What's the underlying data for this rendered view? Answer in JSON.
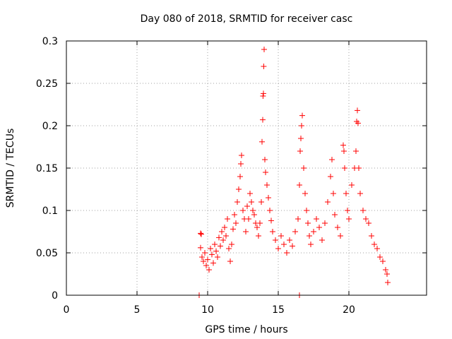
{
  "chart_data": {
    "type": "scatter",
    "title": "Day 080 of 2018, SRMTID for receiver casc",
    "xlabel": "GPS time / hours",
    "ylabel": "SRMTID / TECUs",
    "xlim": [
      0,
      25.5
    ],
    "ylim": [
      0,
      0.3
    ],
    "grid": true,
    "marker": "+",
    "marker_color": "#ff0000",
    "x_ticks": [
      0,
      5,
      10,
      15,
      20
    ],
    "x_tick_labels": [
      "0",
      "5",
      "10",
      "15",
      "20"
    ],
    "y_ticks": [
      0,
      0.05,
      0.1,
      0.15,
      0.2,
      0.25,
      0.3
    ],
    "y_tick_labels": [
      "0",
      "0.05",
      "0.1",
      "0.15",
      "0.2",
      "0.25",
      "0.3"
    ],
    "series": [
      {
        "name": "SRMTID",
        "color": "#ff0000",
        "points": [
          [
            9.4,
            0.0
          ],
          [
            16.5,
            0.0
          ],
          [
            9.5,
            0.073
          ],
          [
            9.55,
            0.072
          ],
          [
            9.5,
            0.056
          ],
          [
            9.6,
            0.045
          ],
          [
            9.7,
            0.04
          ],
          [
            9.8,
            0.05
          ],
          [
            9.9,
            0.035
          ],
          [
            10.0,
            0.042
          ],
          [
            10.1,
            0.03
          ],
          [
            10.2,
            0.055
          ],
          [
            10.3,
            0.048
          ],
          [
            10.4,
            0.038
          ],
          [
            10.5,
            0.06
          ],
          [
            10.6,
            0.052
          ],
          [
            10.7,
            0.045
          ],
          [
            10.8,
            0.068
          ],
          [
            10.9,
            0.058
          ],
          [
            11.0,
            0.075
          ],
          [
            11.1,
            0.065
          ],
          [
            11.2,
            0.08
          ],
          [
            11.3,
            0.07
          ],
          [
            11.4,
            0.09
          ],
          [
            11.5,
            0.055
          ],
          [
            11.6,
            0.04
          ],
          [
            11.7,
            0.06
          ],
          [
            11.8,
            0.078
          ],
          [
            11.9,
            0.095
          ],
          [
            12.0,
            0.085
          ],
          [
            12.1,
            0.11
          ],
          [
            12.2,
            0.125
          ],
          [
            12.3,
            0.14
          ],
          [
            12.35,
            0.155
          ],
          [
            12.4,
            0.165
          ],
          [
            12.5,
            0.1
          ],
          [
            12.6,
            0.09
          ],
          [
            12.7,
            0.075
          ],
          [
            12.8,
            0.105
          ],
          [
            12.9,
            0.09
          ],
          [
            13.0,
            0.12
          ],
          [
            13.1,
            0.11
          ],
          [
            13.2,
            0.1
          ],
          [
            13.3,
            0.095
          ],
          [
            13.4,
            0.085
          ],
          [
            13.5,
            0.08
          ],
          [
            13.6,
            0.07
          ],
          [
            13.7,
            0.085
          ],
          [
            13.8,
            0.11
          ],
          [
            13.85,
            0.181
          ],
          [
            13.9,
            0.207
          ],
          [
            13.92,
            0.235
          ],
          [
            13.95,
            0.238
          ],
          [
            13.97,
            0.27
          ],
          [
            14.0,
            0.29
          ],
          [
            14.05,
            0.16
          ],
          [
            14.1,
            0.145
          ],
          [
            14.2,
            0.13
          ],
          [
            14.3,
            0.115
          ],
          [
            14.4,
            0.1
          ],
          [
            14.5,
            0.088
          ],
          [
            14.6,
            0.075
          ],
          [
            14.8,
            0.065
          ],
          [
            15.0,
            0.055
          ],
          [
            15.2,
            0.07
          ],
          [
            15.4,
            0.06
          ],
          [
            15.6,
            0.05
          ],
          [
            15.8,
            0.065
          ],
          [
            16.0,
            0.058
          ],
          [
            16.2,
            0.075
          ],
          [
            16.4,
            0.09
          ],
          [
            16.5,
            0.13
          ],
          [
            16.55,
            0.17
          ],
          [
            16.6,
            0.185
          ],
          [
            16.65,
            0.2
          ],
          [
            16.7,
            0.212
          ],
          [
            16.8,
            0.15
          ],
          [
            16.9,
            0.12
          ],
          [
            17.0,
            0.1
          ],
          [
            17.1,
            0.085
          ],
          [
            17.2,
            0.07
          ],
          [
            17.3,
            0.06
          ],
          [
            17.5,
            0.075
          ],
          [
            17.7,
            0.09
          ],
          [
            17.9,
            0.08
          ],
          [
            18.1,
            0.065
          ],
          [
            18.3,
            0.085
          ],
          [
            18.5,
            0.11
          ],
          [
            18.7,
            0.14
          ],
          [
            18.8,
            0.16
          ],
          [
            18.9,
            0.12
          ],
          [
            19.0,
            0.095
          ],
          [
            19.2,
            0.08
          ],
          [
            19.4,
            0.07
          ],
          [
            19.6,
            0.177
          ],
          [
            19.65,
            0.17
          ],
          [
            19.7,
            0.15
          ],
          [
            19.8,
            0.12
          ],
          [
            19.9,
            0.1
          ],
          [
            20.0,
            0.09
          ],
          [
            20.2,
            0.13
          ],
          [
            20.4,
            0.15
          ],
          [
            20.5,
            0.17
          ],
          [
            20.55,
            0.205
          ],
          [
            20.6,
            0.218
          ],
          [
            20.65,
            0.203
          ],
          [
            20.7,
            0.15
          ],
          [
            20.8,
            0.12
          ],
          [
            21.0,
            0.1
          ],
          [
            21.2,
            0.09
          ],
          [
            21.4,
            0.085
          ],
          [
            21.6,
            0.07
          ],
          [
            21.8,
            0.06
          ],
          [
            22.0,
            0.055
          ],
          [
            22.2,
            0.045
          ],
          [
            22.4,
            0.04
          ],
          [
            22.6,
            0.03
          ],
          [
            22.7,
            0.025
          ],
          [
            22.75,
            0.015
          ]
        ]
      }
    ]
  }
}
